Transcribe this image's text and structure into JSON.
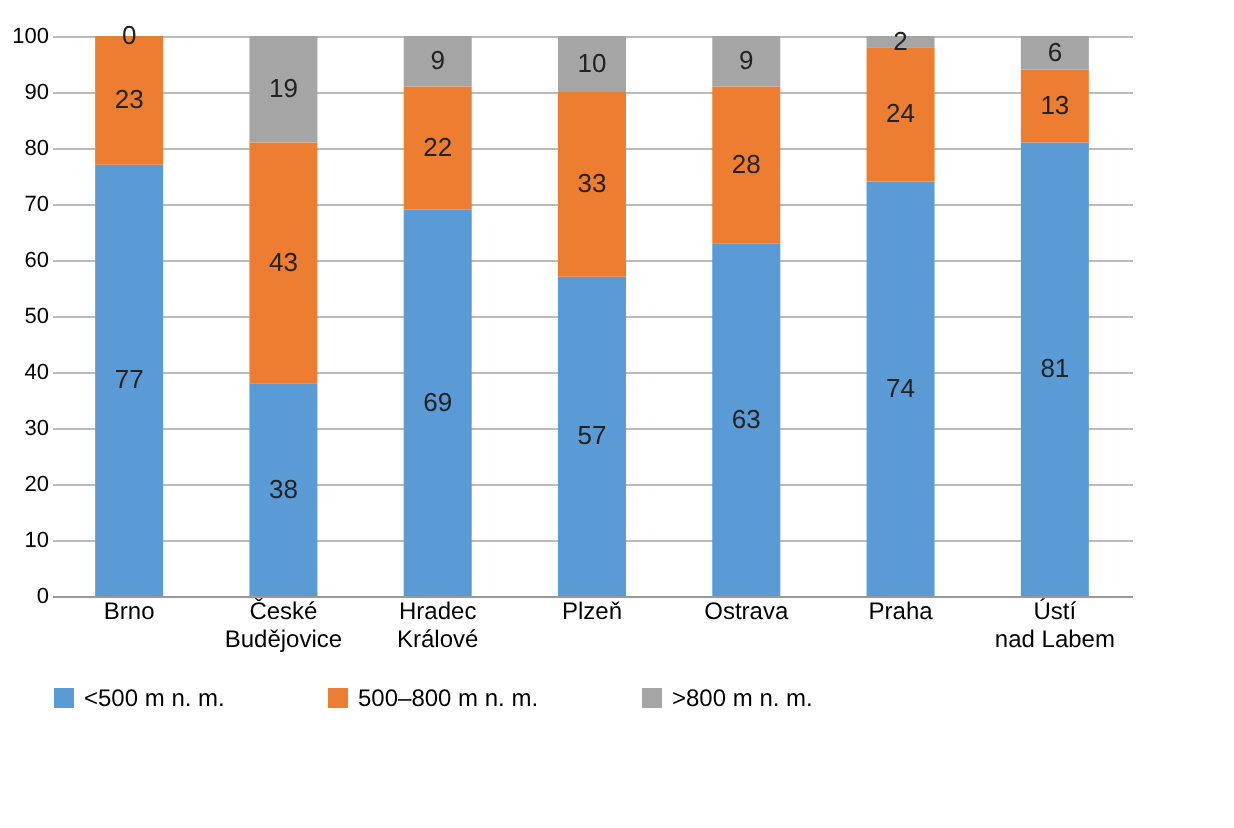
{
  "chart_data": {
    "type": "bar",
    "stacked": true,
    "categories": [
      "Brno",
      "České\nBudějovice",
      "Hradec\nKrálové",
      "Plzeň",
      "Ostrava",
      "Praha",
      "Ústí\nnad Labem"
    ],
    "series": [
      {
        "name": "<500 m n. m.",
        "color": "#5b9bd5",
        "values": [
          77,
          38,
          69,
          57,
          63,
          74,
          81
        ]
      },
      {
        "name": "500–800 m n. m.",
        "color": "#ed7d31",
        "values": [
          23,
          43,
          22,
          33,
          28,
          24,
          13
        ]
      },
      {
        "name": ">800 m n. m.",
        "color": "#a5a5a5",
        "values": [
          0,
          19,
          9,
          10,
          9,
          2,
          6
        ]
      }
    ],
    "ylim": [
      0,
      100
    ],
    "yticks": [
      0,
      10,
      20,
      30,
      40,
      50,
      60,
      70,
      80,
      90,
      100
    ],
    "grid": "y",
    "legend": "bottom",
    "data_labels": true
  }
}
